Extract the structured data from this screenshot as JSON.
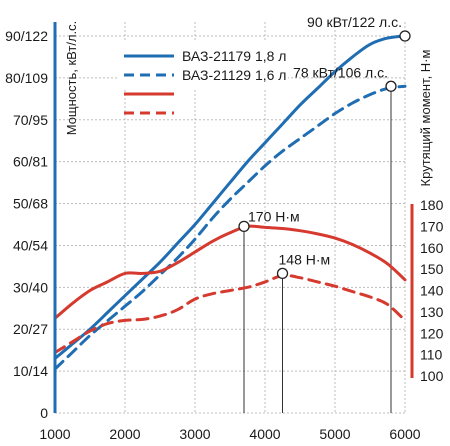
{
  "chart_data": {
    "type": "line",
    "title": "",
    "xlabel": "",
    "ylabel_left": "Мощность, кВт/л.с.",
    "ylabel_right": "Крутящий момент, Н·м",
    "xlim": [
      1000,
      6000
    ],
    "x_ticks": [
      "1000",
      "2000",
      "3000",
      "4000",
      "5000",
      "6000"
    ],
    "ylim_left": [
      0,
      90
    ],
    "y_ticks_left": [
      "0",
      "10/14",
      "20/27",
      "30/40",
      "40/54",
      "50/68",
      "60/81",
      "70/95",
      "80/109",
      "90/122"
    ],
    "ylim_right": [
      100,
      180
    ],
    "y_ticks_right": [
      "100",
      "110",
      "120",
      "130",
      "140",
      "150",
      "160",
      "170",
      "180"
    ],
    "grid": true,
    "legend_position": "top-left",
    "colors": {
      "blue": "#1f6db2",
      "red": "#d63a2f"
    },
    "legend": [
      {
        "label": "ВАЗ-21179 1,8 л",
        "color": "#1f6db2",
        "style": "solid"
      },
      {
        "label": "ВАЗ-21129 1,6 л",
        "color": "#1f6db2",
        "style": "dashed"
      },
      {
        "label": "",
        "color": "#d63a2f",
        "style": "solid"
      },
      {
        "label": "",
        "color": "#d63a2f",
        "style": "dashed"
      }
    ],
    "series": [
      {
        "name": "ВАЗ-21179 1,8 л",
        "quantity": "power",
        "axis": "left",
        "color": "#1f6db2",
        "style": "solid",
        "x": [
          1000,
          1250,
          1500,
          1750,
          2000,
          2250,
          2500,
          2750,
          3000,
          3250,
          3500,
          3750,
          4000,
          4250,
          4500,
          4750,
          5000,
          5250,
          5500,
          5750,
          6000
        ],
        "y": [
          13,
          16.5,
          20,
          24,
          28,
          32,
          36,
          40.5,
          45,
          50,
          55,
          60,
          64.5,
          69,
          73.5,
          77.5,
          81.5,
          85,
          88,
          89.5,
          90
        ]
      },
      {
        "name": "ВАЗ-21129 1,6 л",
        "quantity": "power",
        "axis": "left",
        "color": "#1f6db2",
        "style": "dashed",
        "x": [
          1000,
          1250,
          1500,
          1750,
          2000,
          2250,
          2500,
          2750,
          3000,
          3250,
          3500,
          3750,
          4000,
          4250,
          4500,
          4750,
          5000,
          5250,
          5500,
          5750,
          6000
        ],
        "y": [
          10.5,
          14.5,
          18.5,
          22,
          25.5,
          29,
          33,
          37,
          41.5,
          46.5,
          51,
          55,
          59,
          62.5,
          65.5,
          68.5,
          71.5,
          74,
          76,
          77.5,
          78
        ]
      },
      {
        "name": "",
        "quantity": "torque",
        "axis": "right",
        "color": "#d63a2f",
        "style": "solid",
        "x": [
          1000,
          1250,
          1500,
          1750,
          2000,
          2250,
          2500,
          2750,
          3000,
          3250,
          3500,
          3750,
          4000,
          4250,
          4500,
          4750,
          5000,
          5250,
          5500,
          5750,
          6000
        ],
        "y": [
          127,
          134,
          140,
          144,
          148,
          148,
          149,
          153,
          158,
          163,
          167,
          170,
          169.5,
          169,
          168,
          166.5,
          164.5,
          161.5,
          157.5,
          152.5,
          145
        ]
      },
      {
        "name": "",
        "quantity": "torque",
        "axis": "right",
        "color": "#d63a2f",
        "style": "dashed",
        "x": [
          1000,
          1250,
          1500,
          1750,
          2000,
          2250,
          2500,
          2750,
          3000,
          3250,
          3500,
          3750,
          4000,
          4250,
          4500,
          4750,
          5000,
          5250,
          5500,
          5750,
          6000
        ],
        "y": [
          111,
          116,
          121,
          124.5,
          126,
          126.5,
          128,
          131,
          136,
          138.5,
          140,
          141.5,
          144,
          147,
          146,
          144,
          142,
          139.5,
          137,
          133.5,
          126
        ]
      }
    ],
    "annotations": [
      {
        "text": "90 кВт/122 л.с.",
        "x": 6000,
        "y": 90,
        "axis": "left",
        "placement": "above-left",
        "leader": false
      },
      {
        "text": "78 кВт/106 л.с.",
        "x": 5800,
        "y": 78,
        "axis": "left",
        "placement": "above-left",
        "leader": true
      },
      {
        "text": "170 Н·м",
        "x": 3700,
        "y": 170,
        "axis": "right",
        "placement": "right",
        "leader": true
      },
      {
        "text": "148 Н·м",
        "x": 4250,
        "y": 148,
        "axis": "right",
        "placement": "above-right",
        "leader": true
      }
    ]
  }
}
